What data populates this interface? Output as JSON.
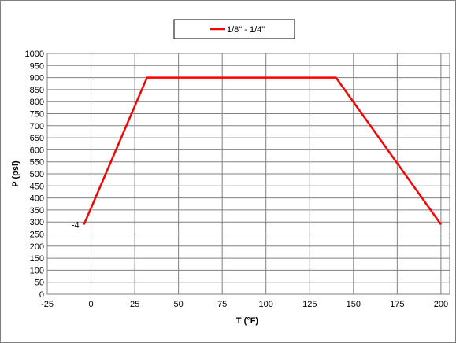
{
  "chart_data": {
    "type": "line",
    "xlabel": "T (°F)",
    "ylabel": "P (psi)",
    "xlim": [
      -25,
      205
    ],
    "ylim": [
      0,
      1000
    ],
    "x_ticks": [
      -25,
      0,
      25,
      50,
      75,
      100,
      125,
      150,
      175,
      200
    ],
    "y_ticks": [
      0,
      50,
      100,
      150,
      200,
      250,
      300,
      350,
      400,
      450,
      500,
      550,
      600,
      650,
      700,
      750,
      800,
      850,
      900,
      950,
      1000
    ],
    "grid": true,
    "legend_position": "top-center",
    "series": [
      {
        "name": "1/8\" - 1/4\"",
        "color": "#ff0000",
        "x": [
          -4,
          32,
          140,
          200
        ],
        "y": [
          290,
          900,
          900,
          290
        ]
      }
    ],
    "annotations": [
      {
        "text": "-4",
        "x": -4,
        "y": 290
      }
    ]
  }
}
